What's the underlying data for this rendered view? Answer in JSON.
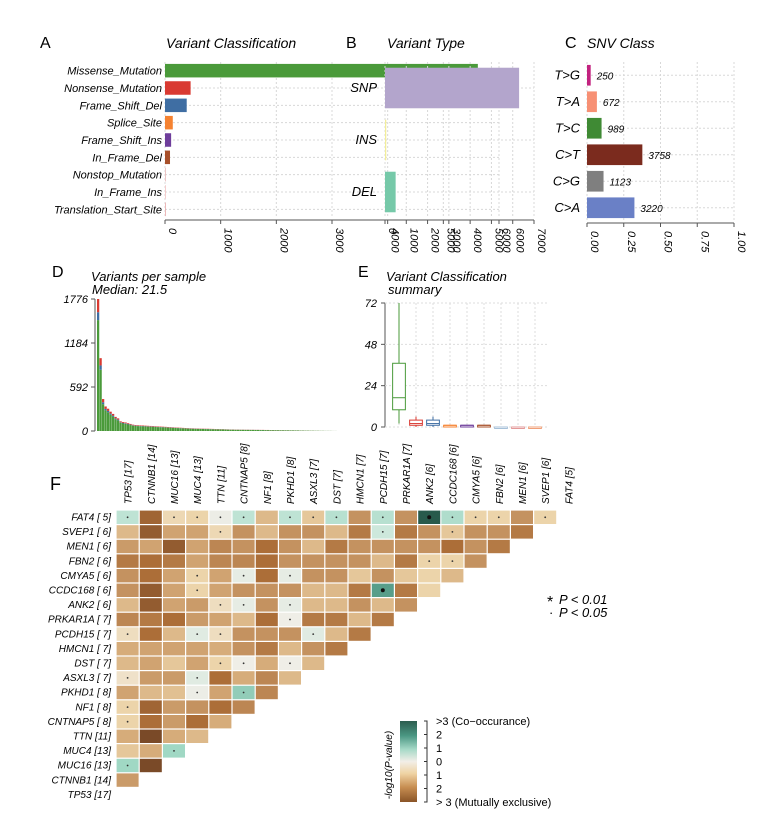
{
  "chart_data": [
    {
      "panel": "A",
      "type": "bar",
      "orientation": "horizontal",
      "title": "Variant Classification",
      "categories": [
        "Missense_Mutation",
        "Nonsense_Mutation",
        "Frame_Shift_Del",
        "Splice_Site",
        "Frame_Shift_Ins",
        "In_Frame_Del",
        "Nonstop_Mutation",
        "In_Frame_Ins",
        "Translation_Start_Site"
      ],
      "values": [
        5620,
        460,
        390,
        140,
        110,
        90,
        8,
        10,
        5
      ],
      "colors": [
        "#4a9a3a",
        "#d93a32",
        "#3f6ea3",
        "#f58231",
        "#6e3d9b",
        "#a8502a",
        "#e8b8b8",
        "#f2c2c2",
        "#e7a7a7"
      ],
      "xlim": [
        0,
        6000
      ],
      "xticks": [
        "0",
        "1000",
        "2000",
        "3000",
        "4000",
        "5000",
        "6000"
      ],
      "grid": true
    },
    {
      "panel": "B",
      "type": "bar",
      "orientation": "horizontal",
      "title": "Variant Type",
      "categories": [
        "SNP",
        "INS",
        "DEL"
      ],
      "values": [
        6300,
        60,
        500
      ],
      "colors": [
        "#b3a5cc",
        "#f2ee9a",
        "#76c9a9"
      ],
      "xlim": [
        0,
        7000
      ],
      "xticks": [
        "0",
        "1000",
        "2000",
        "3000",
        "4000",
        "5000",
        "6000",
        "7000"
      ],
      "grid": true
    },
    {
      "panel": "C",
      "type": "bar",
      "orientation": "horizontal",
      "title": "SNV Class",
      "categories": [
        "T>G",
        "T>A",
        "T>C",
        "C>T",
        "C>G",
        "C>A"
      ],
      "counts": [
        250,
        672,
        989,
        3758,
        1123,
        3220
      ],
      "values": [
        0.0251,
        0.0673,
        0.0991,
        0.3765,
        0.1125,
        0.3226
      ],
      "labels": [
        "250",
        "672",
        "989",
        "3758",
        "1123",
        "3220"
      ],
      "colors": [
        "#c2227f",
        "#f79074",
        "#3f8a34",
        "#7b2b1e",
        "#7f7f7f",
        "#6a80c6"
      ],
      "xlim": [
        0,
        1
      ],
      "xticks": [
        "0.00",
        "0.25",
        "0.50",
        "0.75",
        "1.00"
      ],
      "grid": true
    },
    {
      "panel": "D",
      "type": "bar",
      "stacked": true,
      "title": "Variants per sample",
      "subtitle": "Median: 21.5",
      "ylim": [
        0,
        1776
      ],
      "yticks": [
        "0",
        "592",
        "1184",
        "1776"
      ],
      "sample_totals": [
        1776,
        980,
        430,
        330,
        300,
        260,
        230,
        190,
        170,
        130,
        120,
        115,
        105,
        95,
        85,
        80,
        78,
        76,
        74,
        72,
        70,
        68,
        66,
        64,
        62,
        60,
        58,
        56,
        54,
        52,
        50,
        48,
        46,
        44,
        42,
        40,
        38,
        37,
        36,
        35,
        34,
        33,
        32,
        31,
        30,
        29,
        28,
        27,
        26,
        25,
        24,
        23,
        22,
        21,
        21,
        20,
        20,
        19,
        19,
        18,
        18,
        17,
        17,
        16,
        16,
        15,
        15,
        14,
        14,
        13,
        13,
        12,
        12,
        11,
        11,
        10,
        10,
        9,
        9,
        8,
        8,
        7,
        7,
        6,
        6,
        5,
        5,
        4,
        4,
        3,
        3,
        2,
        2,
        2,
        1,
        1
      ],
      "series_colors": [
        "#4a9a3a",
        "#d93a32",
        "#3f6ea3"
      ],
      "grid": false
    },
    {
      "panel": "E",
      "type": "box",
      "title": "Variant Classification",
      "subtitle": "summary",
      "ylim": [
        0,
        72
      ],
      "yticks": [
        "0",
        "24",
        "48",
        "72"
      ],
      "boxes": [
        {
          "name": "Missense_Mutation",
          "color": "#4a9a3a",
          "min": 2,
          "q1": 10,
          "median": 17,
          "q3": 37,
          "max": 72
        },
        {
          "name": "Nonsense_Mutation",
          "color": "#d93a32",
          "min": 0,
          "q1": 1,
          "median": 2,
          "q3": 4,
          "max": 6
        },
        {
          "name": "Frame_Shift_Del",
          "color": "#3f6ea3",
          "min": 0,
          "q1": 1,
          "median": 2,
          "q3": 4,
          "max": 6
        },
        {
          "name": "Splice_Site",
          "color": "#f58231",
          "min": 0,
          "q1": 0,
          "median": 1,
          "q3": 1,
          "max": 1
        },
        {
          "name": "Frame_Shift_Ins",
          "color": "#6e3d9b",
          "min": 0,
          "q1": 0,
          "median": 1,
          "q3": 1,
          "max": 1
        },
        {
          "name": "In_Frame_Del",
          "color": "#a8502a",
          "min": 0,
          "q1": 0,
          "median": 1,
          "q3": 1,
          "max": 1
        },
        {
          "name": "Nonstop_Mutation",
          "color": "#a7c1d9",
          "min": 0,
          "q1": 0,
          "median": 0,
          "q3": 0,
          "max": 0
        },
        {
          "name": "In_Frame_Ins",
          "color": "#e39a9a",
          "min": 0,
          "q1": 0,
          "median": 0,
          "q3": 0,
          "max": 0
        },
        {
          "name": "Translation_Start_Site",
          "color": "#f0a07a",
          "min": 0,
          "q1": 0,
          "median": 0,
          "q3": 0,
          "max": 0
        }
      ],
      "grid": true
    },
    {
      "panel": "F",
      "type": "heatmap",
      "title": "Somatic interactions",
      "columns": [
        "TP53 [17]",
        "CTNNB1 [14]",
        "MUC16 [13]",
        "MUC4 [13]",
        "TTN [11]",
        "CNTNAP5 [8]",
        "NF1 [8]",
        "PKHD1 [8]",
        "ASXL3 [7]",
        "DST [7]",
        "HMCN1 [7]",
        "PCDH15 [7]",
        "PRKAR1A [7]",
        "ANK2 [6]",
        "CCDC168 [6]",
        "CMYA5 [6]",
        "FBN2 [6]",
        "MEN1 [6]",
        "SVEP1 [6]",
        "FAT4 [5]"
      ],
      "rows": [
        "FAT4 [ 5]",
        "SVEP1 [ 6]",
        "MEN1 [ 6]",
        "FBN2 [ 6]",
        "CMYA5 [ 6]",
        "CCDC168 [ 6]",
        "ANK2 [ 6]",
        "PRKAR1A [ 7]",
        "PCDH15 [ 7]",
        "HMCN1 [ 7]",
        "DST [ 7]",
        "ASXL3 [ 7]",
        "PKHD1 [ 8]",
        "NF1 [ 8]",
        "CNTNAP5 [ 8]",
        "TTN [11]",
        "MUC4 [13]",
        "MUC16 [13]",
        "CTNNB1 [14]",
        "TP53 [17]"
      ],
      "values": [
        [
          0.8,
          -2.6,
          -0.5,
          -0.6,
          0.1,
          0.8,
          -1.0,
          0.8,
          -0.8,
          0.9,
          -1.8,
          0.9,
          -1.8,
          3.2,
          1.0,
          -0.6,
          -0.6,
          -1.8,
          -0.6
        ],
        [
          -1.0,
          -2.8,
          -1.4,
          -1.4,
          -0.5,
          -1.8,
          -1.0,
          -1.8,
          -1.8,
          -1.0,
          -2.2,
          0.6,
          -2.2,
          -1.8,
          -0.8,
          -1.8,
          -1.8,
          -2.2
        ],
        [
          -1.6,
          -1.4,
          -2.8,
          -1.4,
          -2.0,
          -1.8,
          -2.4,
          -1.8,
          -1.0,
          -2.2,
          -1.8,
          -1.8,
          -1.8,
          -1.8,
          -2.4,
          -1.8,
          -2.2
        ],
        [
          -2.2,
          -2.4,
          -2.2,
          -1.4,
          -2.0,
          -2.0,
          -2.4,
          -1.8,
          -1.8,
          -1.8,
          -1.8,
          -1.0,
          -2.2,
          -0.6,
          -0.6,
          -1.8
        ],
        [
          -1.8,
          -2.4,
          -1.4,
          -0.6,
          -1.4,
          0.2,
          -2.4,
          0.2,
          -1.8,
          -1.8,
          -0.8,
          -1.8,
          -0.8,
          -0.6,
          -1.0
        ],
        [
          -1.8,
          -2.8,
          -1.4,
          -0.6,
          -1.4,
          -1.8,
          -1.8,
          -1.8,
          -1.0,
          -1.0,
          -2.2,
          2.2,
          -2.2,
          -0.6
        ],
        [
          -1.0,
          -2.8,
          -1.4,
          -1.6,
          -0.4,
          0.2,
          -1.8,
          0.2,
          -1.0,
          -1.0,
          -1.8,
          -1.0,
          -1.8
        ],
        [
          -2.0,
          -2.2,
          -2.4,
          -1.6,
          -1.4,
          -1.0,
          -2.4,
          0.05,
          -2.2,
          -2.2,
          -1.0,
          -2.2
        ],
        [
          -0.4,
          -2.4,
          -1.0,
          0.3,
          -0.4,
          -1.8,
          -1.8,
          -1.8,
          0.3,
          -1.0,
          -2.2
        ],
        [
          -1.2,
          -1.4,
          -1.4,
          -1.4,
          -1.2,
          -1.8,
          -2.2,
          -1.0,
          -1.8,
          -2.2
        ],
        [
          -1.0,
          -1.4,
          -0.8,
          -1.4,
          -0.6,
          0.05,
          -1.2,
          0.05,
          -1.0
        ],
        [
          -0.3,
          -1.6,
          -1.6,
          0.3,
          -2.4,
          -1.2,
          -2.0,
          -1.0
        ],
        [
          -1.4,
          -1.0,
          -0.9,
          0.1,
          -1.4,
          1.4,
          -2.0
        ],
        [
          -0.6,
          -2.6,
          -1.6,
          -1.8,
          -2.4,
          -2.0
        ],
        [
          -0.6,
          -2.4,
          -1.6,
          -2.4,
          -1.2
        ],
        [
          -1.2,
          -3.2,
          -1.2,
          -1.0
        ],
        [
          -0.8,
          -1.2,
          1.2
        ],
        [
          1.2,
          -3.2
        ],
        [
          -1.6
        ],
        []
      ],
      "markers": [
        [
          ".",
          "",
          ".",
          ".",
          ".",
          ".",
          "",
          ".",
          ".",
          ".",
          "",
          ".",
          "",
          "*",
          ".",
          ".",
          ".",
          "",
          "."
        ],
        [
          "",
          "",
          "",
          "",
          ".",
          "",
          "",
          "",
          "",
          "",
          "",
          ".",
          "",
          "",
          ".",
          "",
          "",
          ""
        ],
        [
          "",
          "",
          "",
          "",
          "",
          "",
          "",
          "",
          "",
          "",
          "",
          "",
          "",
          "",
          "",
          "",
          ""
        ],
        [
          "",
          "",
          "",
          "",
          "",
          "",
          "",
          "",
          "",
          "",
          "",
          "",
          "",
          ".",
          ".",
          ""
        ],
        [
          "",
          "",
          "",
          ".",
          "",
          ".",
          "",
          ".",
          "",
          "",
          "",
          "",
          "",
          "",
          ""
        ],
        [
          "",
          "",
          "",
          ".",
          "",
          "",
          "",
          "",
          "",
          "",
          "",
          "*",
          "",
          ""
        ],
        [
          "",
          "",
          "",
          "",
          ".",
          ".",
          "",
          ".",
          "",
          "",
          "",
          "",
          ""
        ],
        [
          "",
          "",
          "",
          "",
          "",
          "",
          "",
          ".",
          "",
          "",
          "",
          ""
        ],
        [
          ".",
          "",
          "",
          ".",
          ".",
          "",
          "",
          "",
          ".",
          "",
          ""
        ],
        [
          "",
          "",
          "",
          "",
          "",
          "",
          "",
          "",
          "",
          ""
        ],
        [
          "",
          "",
          "",
          "",
          ".",
          ".",
          "",
          ".",
          ""
        ],
        [
          ".",
          "",
          "",
          ".",
          "",
          "",
          "",
          ""
        ],
        [
          "",
          "",
          "",
          ".",
          "",
          ".",
          ""
        ],
        [
          ".",
          "",
          "",
          "",
          "",
          ""
        ],
        [
          ".",
          "",
          "",
          "",
          ""
        ],
        [
          "",
          "",
          "",
          ""
        ],
        [
          "",
          "",
          "."
        ],
        [
          ".",
          ""
        ],
        [
          ""
        ],
        []
      ],
      "legend": {
        "title": "-log10(P-value)",
        "labels": [
          ">3 (Co−occurance)",
          "2",
          "1",
          "0",
          "1",
          "2",
          "> 3 (Mutually exclusive)"
        ]
      },
      "significance": [
        {
          "symbol": "*",
          "label": "P < 0.01"
        },
        {
          "symbol": "·",
          "label": "P < 0.05"
        }
      ]
    }
  ],
  "panels": {
    "a_letter": "A",
    "b_letter": "B",
    "c_letter": "C",
    "d_letter": "D",
    "e_letter": "E",
    "f_letter": "F"
  }
}
